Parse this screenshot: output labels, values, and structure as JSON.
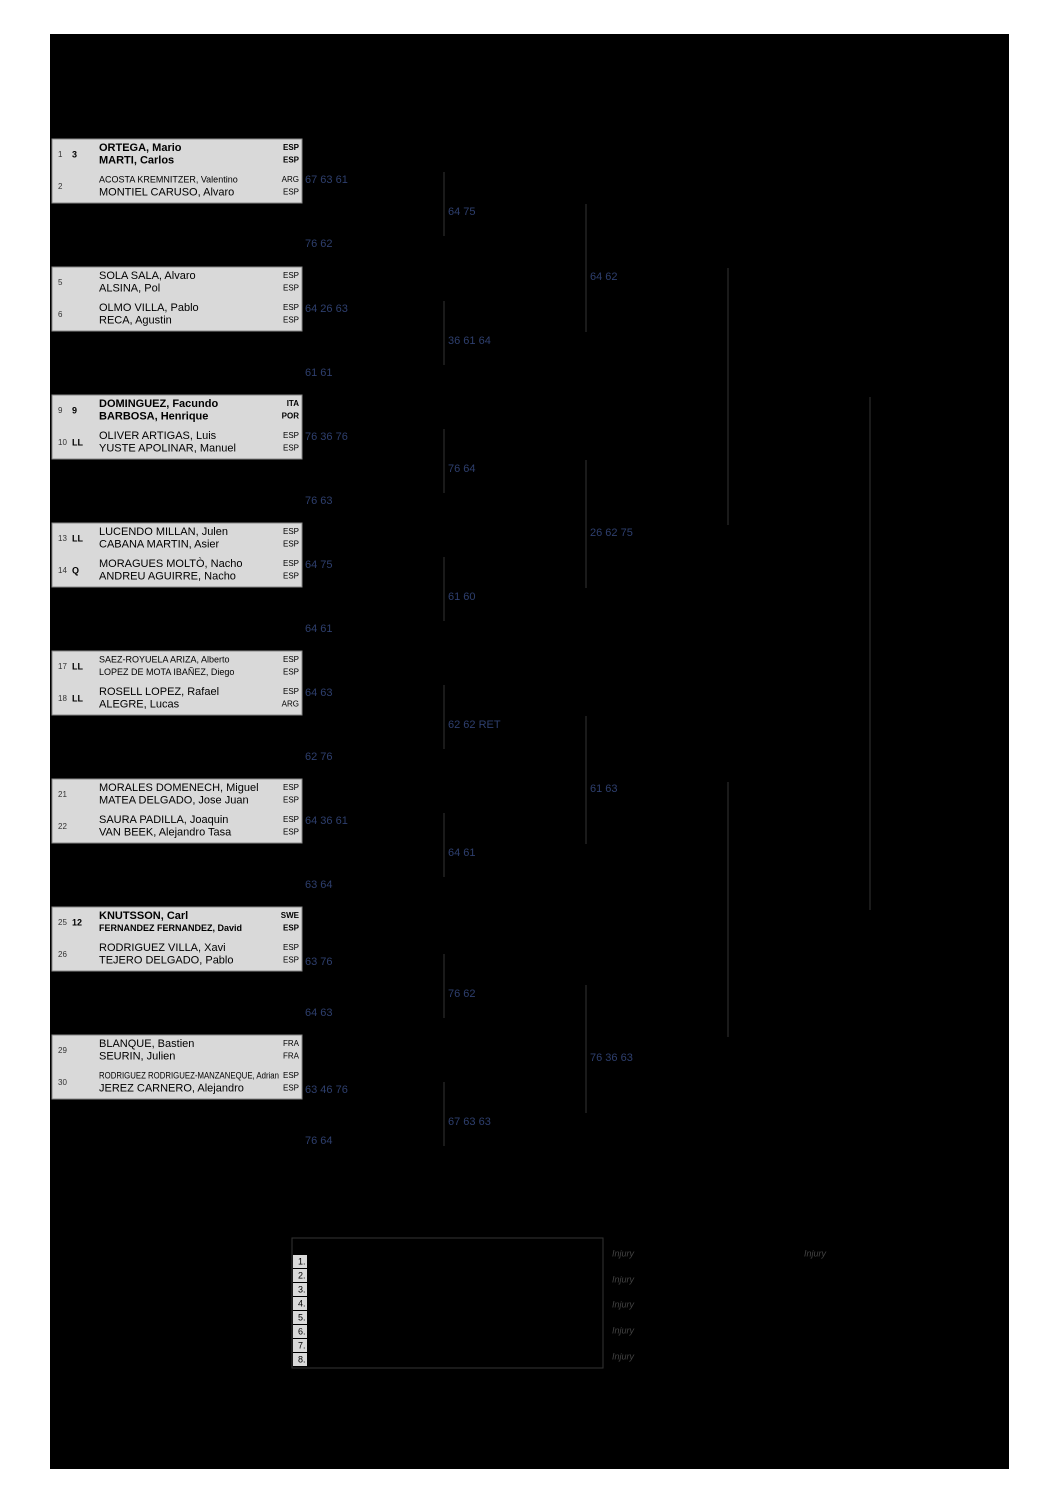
{
  "draw": {
    "boxes": [
      [
        {
          "num": "1",
          "tag": "3",
          "bold": true,
          "players": [
            {
              "name": "ORTEGA, Mario",
              "nat": "ESP"
            },
            {
              "name": "MARTI, Carlos",
              "nat": "ESP"
            }
          ]
        },
        {
          "num": "2",
          "tag": "",
          "bold": false,
          "players": [
            {
              "name": "ACOSTA KREMNITZER, Valentino",
              "nat": "ARG"
            },
            {
              "name": "MONTIEL CARUSO, Alvaro",
              "nat": "ESP"
            }
          ]
        }
      ],
      [
        {
          "num": "5",
          "tag": "",
          "bold": false,
          "players": [
            {
              "name": "SOLA SALA, Alvaro",
              "nat": "ESP"
            },
            {
              "name": "ALSINA, Pol",
              "nat": "ESP"
            }
          ]
        },
        {
          "num": "6",
          "tag": "",
          "bold": false,
          "players": [
            {
              "name": "OLMO VILLA, Pablo",
              "nat": "ESP"
            },
            {
              "name": "RECA, Agustin",
              "nat": "ESP"
            }
          ]
        }
      ],
      [
        {
          "num": "9",
          "tag": "9",
          "bold": true,
          "players": [
            {
              "name": "DOMINGUEZ, Facundo",
              "nat": "ITA"
            },
            {
              "name": "BARBOSA, Henrique",
              "nat": "POR"
            }
          ]
        },
        {
          "num": "10",
          "tag": "LL",
          "bold": false,
          "players": [
            {
              "name": "OLIVER ARTIGAS, Luis",
              "nat": "ESP"
            },
            {
              "name": "YUSTE APOLINAR, Manuel",
              "nat": "ESP"
            }
          ]
        }
      ],
      [
        {
          "num": "13",
          "tag": "LL",
          "bold": false,
          "players": [
            {
              "name": "LUCENDO MILLAN, Julen",
              "nat": "ESP"
            },
            {
              "name": "CABANA MARTIN, Asier",
              "nat": "ESP"
            }
          ]
        },
        {
          "num": "14",
          "tag": "Q",
          "bold": false,
          "players": [
            {
              "name": "MORAGUES MOLTÒ, Nacho",
              "nat": "ESP"
            },
            {
              "name": "ANDREU AGUIRRE, Nacho",
              "nat": "ESP"
            }
          ]
        }
      ],
      [
        {
          "num": "17",
          "tag": "LL",
          "bold": false,
          "players": [
            {
              "name": "SAEZ-ROYUELA ARIZA, Alberto",
              "nat": "ESP"
            },
            {
              "name": "LOPEZ DE MOTA IBAÑEZ, Diego",
              "nat": "ESP"
            }
          ]
        },
        {
          "num": "18",
          "tag": "LL",
          "bold": false,
          "players": [
            {
              "name": "ROSELL LOPEZ, Rafael",
              "nat": "ESP"
            },
            {
              "name": "ALEGRE, Lucas",
              "nat": "ARG"
            }
          ]
        }
      ],
      [
        {
          "num": "21",
          "tag": "",
          "bold": false,
          "players": [
            {
              "name": "MORALES DOMENECH, Miguel",
              "nat": "ESP"
            },
            {
              "name": "MATEA DELGADO, Jose Juan",
              "nat": "ESP"
            }
          ]
        },
        {
          "num": "22",
          "tag": "",
          "bold": false,
          "players": [
            {
              "name": "SAURA PADILLA, Joaquin",
              "nat": "ESP"
            },
            {
              "name": "VAN BEEK, Alejandro Tasa",
              "nat": "ESP"
            }
          ]
        }
      ],
      [
        {
          "num": "25",
          "tag": "12",
          "bold": true,
          "players": [
            {
              "name": "KNUTSSON, Carl",
              "nat": "SWE"
            },
            {
              "name": "FERNANDEZ FERNANDEZ, David",
              "nat": "ESP"
            }
          ]
        },
        {
          "num": "26",
          "tag": "",
          "bold": false,
          "players": [
            {
              "name": "RODRIGUEZ VILLA, Xavi",
              "nat": "ESP"
            },
            {
              "name": "TEJERO DELGADO, Pablo",
              "nat": "ESP"
            }
          ]
        }
      ],
      [
        {
          "num": "29",
          "tag": "",
          "bold": false,
          "players": [
            {
              "name": "BLANQUE, Bastien",
              "nat": "FRA"
            },
            {
              "name": "SEURIN, Julien",
              "nat": "FRA"
            }
          ]
        },
        {
          "num": "30",
          "tag": "",
          "bold": false,
          "players": [
            {
              "name": "RODRIGUEZ RODRIGUEZ-MANZANEQUE, Adrian",
              "nat": "ESP"
            },
            {
              "name": "JEREZ CARNERO, Alejandro",
              "nat": "ESP"
            }
          ]
        }
      ]
    ],
    "round1": [
      "67 63 61",
      "76 62",
      "64 26 63",
      "61 61",
      "76 36 76",
      "76 63",
      "64 75",
      "64 61",
      "64 63",
      "62 76",
      "64 36 61",
      "63 64",
      "63 76",
      "64 63",
      "63 46 76",
      "76 64"
    ],
    "round2": [
      "64 75",
      "36 61 64",
      "76 64",
      "61 60",
      "62 62 RET",
      "64 61",
      "76 62",
      "67 63 63"
    ],
    "round3": [
      "64 62",
      "26 62 75",
      "61 63",
      "76 36 63"
    ]
  },
  "legend": {
    "numbers": [
      "1.",
      "2.",
      "3.",
      "4.",
      "5.",
      "6.",
      "7.",
      "8."
    ],
    "notes": [
      "Injury",
      "Injury",
      "Injury",
      "Injury",
      "Injury",
      "Injury"
    ]
  }
}
